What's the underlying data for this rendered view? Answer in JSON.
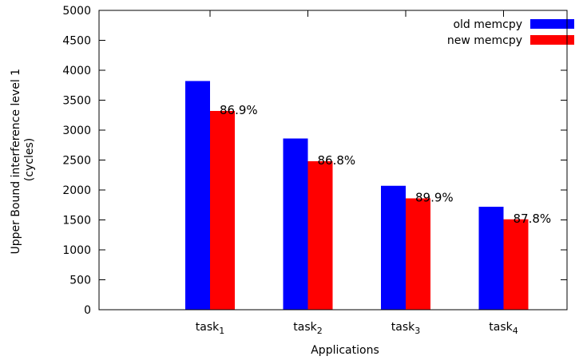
{
  "chart_data": {
    "type": "bar",
    "categories": [
      "task1",
      "task2",
      "task3",
      "task4"
    ],
    "category_labels": [
      {
        "base": "task",
        "sub": "1"
      },
      {
        "base": "task",
        "sub": "2"
      },
      {
        "base": "task",
        "sub": "3"
      },
      {
        "base": "task",
        "sub": "4"
      }
    ],
    "series": [
      {
        "name": "old memcpy",
        "color": "#0000ff",
        "values": [
          3820,
          2860,
          2070,
          1720
        ]
      },
      {
        "name": "new memcpy",
        "color": "#ff0000",
        "values": [
          3320,
          2480,
          1860,
          1510
        ]
      }
    ],
    "annotations": [
      "86.9%",
      "86.8%",
      "89.9%",
      "87.8%"
    ],
    "title": "",
    "xlabel": "Applications",
    "ylabel": [
      "Upper Bound interference level 1",
      "(cycles)"
    ],
    "ylim": [
      0,
      5000
    ],
    "yticks": [
      0,
      500,
      1000,
      1500,
      2000,
      2500,
      3000,
      3500,
      4000,
      4500,
      5000
    ],
    "legend_position": "top-right",
    "grid": false
  }
}
